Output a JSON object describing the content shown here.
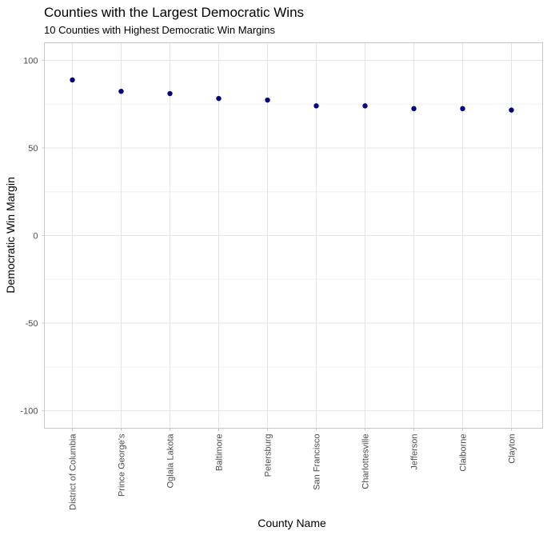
{
  "chart_data": {
    "type": "scatter",
    "title": "Counties with the Largest Democratic Wins",
    "subtitle": "10 Counties with Highest Democratic Win Margins",
    "xlabel": "County Name",
    "ylabel": "Democratic Win Margin",
    "categories": [
      "District of Columbia",
      "Prince George's",
      "Oglala Lakota",
      "Baltimore",
      "Petersburg",
      "San Francisco",
      "Charlottesville",
      "Jefferson",
      "Claiborne",
      "Clayton"
    ],
    "values": [
      88.8,
      82.3,
      81.0,
      78.2,
      77.3,
      74.0,
      74.0,
      72.4,
      72.4,
      71.6
    ],
    "ylim": [
      -110,
      110
    ],
    "yticks": [
      -100,
      -50,
      0,
      50,
      100
    ],
    "grid": true,
    "point_color": "#000080"
  }
}
